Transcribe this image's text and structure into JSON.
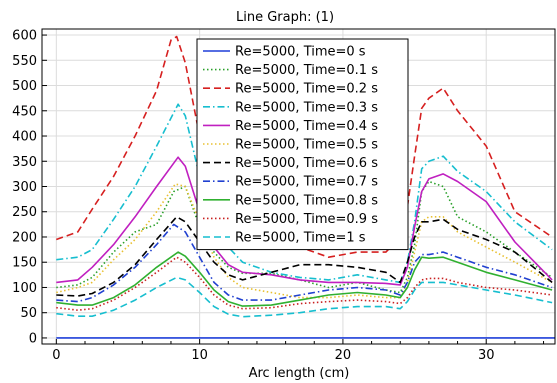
{
  "chart_data": {
    "type": "line",
    "title": "Line Graph:  (1)",
    "xlabel": "Arc length (cm)",
    "ylabel": "",
    "xlim": [
      -1,
      34.8
    ],
    "ylim": [
      -12,
      612
    ],
    "xticks": [
      0,
      10,
      20,
      30
    ],
    "yticks": [
      0,
      50,
      100,
      150,
      200,
      250,
      300,
      350,
      400,
      450,
      500,
      550,
      600
    ],
    "grid": true,
    "legend_position": "top-center",
    "series": [
      {
        "name": "Re=5000, Time=0 s",
        "color": "#1f3fd9",
        "dash": "solid",
        "x": [
          0,
          34.8
        ],
        "y": [
          0,
          0
        ]
      },
      {
        "name": "Re=5000, Time=0.1 s",
        "color": "#2aa02a",
        "dash": "dotted",
        "x": [
          0,
          1.5,
          2.5,
          4,
          5.5,
          7,
          8.2,
          9,
          10,
          11,
          12,
          13,
          15,
          17,
          19,
          21,
          23,
          24,
          24.5,
          25,
          25.5,
          26,
          27,
          28,
          30,
          32,
          34.6
        ],
        "y": [
          100,
          105,
          120,
          170,
          210,
          225,
          290,
          300,
          220,
          170,
          140,
          128,
          128,
          115,
          100,
          110,
          95,
          90,
          120,
          185,
          290,
          310,
          300,
          240,
          210,
          170,
          120
        ]
      },
      {
        "name": "Re=5000, Time=0.2 s",
        "color": "#d62020",
        "dash": "dashed",
        "x": [
          0,
          1.5,
          2.5,
          4,
          5.5,
          7,
          8,
          8.4,
          9,
          10,
          11,
          12,
          13,
          15,
          17,
          19,
          21,
          23,
          24,
          24.5,
          25,
          25.5,
          26,
          27,
          28,
          30,
          32,
          34.6
        ],
        "y": [
          195,
          210,
          255,
          320,
          400,
          490,
          590,
          597,
          545,
          400,
          305,
          250,
          220,
          200,
          180,
          160,
          170,
          170,
          200,
          260,
          360,
          455,
          475,
          495,
          450,
          380,
          250,
          200
        ]
      },
      {
        "name": "Re=5000, Time=0.3 s",
        "color": "#17becf",
        "dash": "dashdot",
        "x": [
          0,
          1.5,
          2.5,
          4,
          5.5,
          7,
          8.5,
          9,
          10,
          11,
          12,
          13,
          15,
          17,
          19,
          21,
          23,
          24,
          24.5,
          25,
          25.5,
          26,
          27,
          28,
          30,
          32,
          34.6
        ],
        "y": [
          155,
          160,
          175,
          235,
          300,
          380,
          463,
          440,
          320,
          230,
          180,
          150,
          130,
          120,
          115,
          125,
          115,
          110,
          150,
          230,
          335,
          350,
          360,
          330,
          290,
          230,
          175
        ]
      },
      {
        "name": "Re=5000, Time=0.4 s",
        "color": "#c020c0",
        "dash": "solid",
        "x": [
          0,
          1.5,
          2.5,
          4,
          5.5,
          7,
          8.5,
          9,
          10,
          11,
          12,
          13,
          15,
          17,
          19,
          21,
          23,
          24,
          24.5,
          25,
          25.5,
          26,
          27,
          28,
          30,
          32,
          34.6
        ],
        "y": [
          110,
          115,
          140,
          185,
          240,
          300,
          358,
          340,
          250,
          180,
          145,
          130,
          125,
          115,
          110,
          110,
          108,
          105,
          140,
          220,
          290,
          315,
          325,
          310,
          270,
          190,
          115
        ]
      },
      {
        "name": "Re=5000, Time=0.5 s",
        "color": "#e8c030",
        "dash": "dotted",
        "x": [
          0,
          1.5,
          2.5,
          4,
          5.5,
          7,
          8.3,
          9,
          10,
          11,
          12,
          13,
          15,
          17,
          19,
          21,
          23,
          24,
          24.5,
          25,
          25.5,
          26,
          27,
          28,
          30,
          32,
          34.6
        ],
        "y": [
          90,
          100,
          110,
          155,
          195,
          250,
          305,
          300,
          230,
          160,
          120,
          100,
          90,
          80,
          80,
          85,
          80,
          80,
          110,
          170,
          230,
          240,
          240,
          210,
          180,
          150,
          110
        ]
      },
      {
        "name": "Re=5000, Time=0.6 s",
        "color": "#000000",
        "dash": "dashed",
        "x": [
          0,
          1.5,
          2.5,
          4,
          5.5,
          7,
          8.4,
          9,
          10,
          11,
          12,
          13,
          15,
          17,
          19,
          21,
          23,
          24,
          24.5,
          25,
          25.5,
          26,
          27,
          28,
          30,
          32,
          34.6
        ],
        "y": [
          85,
          83,
          88,
          110,
          145,
          195,
          240,
          230,
          190,
          150,
          125,
          115,
          130,
          145,
          145,
          140,
          130,
          110,
          150,
          200,
          230,
          230,
          235,
          215,
          195,
          170,
          110
        ]
      },
      {
        "name": "Re=5000, Time=0.7 s",
        "color": "#2040d0",
        "dash": "dashdot",
        "x": [
          0,
          1.5,
          2.5,
          4,
          5.5,
          7,
          8.2,
          9,
          10,
          11,
          12,
          13,
          15,
          17,
          19,
          21,
          23,
          24,
          24.5,
          25,
          25.5,
          26,
          27,
          28,
          30,
          32,
          34.6
        ],
        "y": [
          75,
          72,
          80,
          105,
          140,
          185,
          225,
          210,
          160,
          110,
          85,
          75,
          75,
          85,
          95,
          100,
          95,
          85,
          110,
          150,
          165,
          165,
          170,
          160,
          140,
          125,
          100
        ]
      },
      {
        "name": "Re=5000, Time=0.8 s",
        "color": "#30b030",
        "dash": "solid",
        "x": [
          0,
          1.5,
          2.5,
          4,
          5.5,
          7,
          8.5,
          9,
          10,
          11,
          12,
          13,
          15,
          17,
          19,
          21,
          23,
          24,
          24.5,
          25,
          25.5,
          26,
          27,
          28,
          30,
          32,
          34.6
        ],
        "y": [
          70,
          65,
          65,
          80,
          105,
          140,
          170,
          162,
          130,
          95,
          72,
          63,
          65,
          75,
          85,
          90,
          85,
          80,
          100,
          135,
          160,
          158,
          160,
          150,
          130,
          115,
          95
        ]
      },
      {
        "name": "Re=5000, Time=0.9 s",
        "color": "#c82020",
        "dash": "dotted",
        "x": [
          0,
          1.5,
          2.5,
          4,
          5.5,
          7,
          8.4,
          9,
          10,
          11,
          12,
          13,
          15,
          17,
          19,
          21,
          23,
          24,
          24.5,
          25,
          25.5,
          26,
          27,
          28,
          30,
          32,
          34.6
        ],
        "y": [
          60,
          55,
          58,
          75,
          100,
          130,
          160,
          150,
          120,
          85,
          65,
          58,
          60,
          68,
          72,
          75,
          72,
          68,
          80,
          100,
          115,
          118,
          118,
          110,
          100,
          95,
          85
        ]
      },
      {
        "name": "Re=5000, Time=1 s",
        "color": "#17becf",
        "dash": "dashed",
        "x": [
          0,
          1.5,
          2.5,
          4,
          5.5,
          7,
          8.4,
          9,
          10,
          11,
          12,
          13,
          15,
          17,
          19,
          21,
          23,
          24,
          24.5,
          25,
          25.5,
          26,
          27,
          28,
          30,
          32,
          34.6
        ],
        "y": [
          48,
          43,
          43,
          55,
          75,
          100,
          120,
          115,
          90,
          62,
          47,
          42,
          45,
          50,
          58,
          62,
          62,
          58,
          72,
          95,
          110,
          110,
          110,
          105,
          95,
          85,
          70
        ]
      }
    ]
  }
}
